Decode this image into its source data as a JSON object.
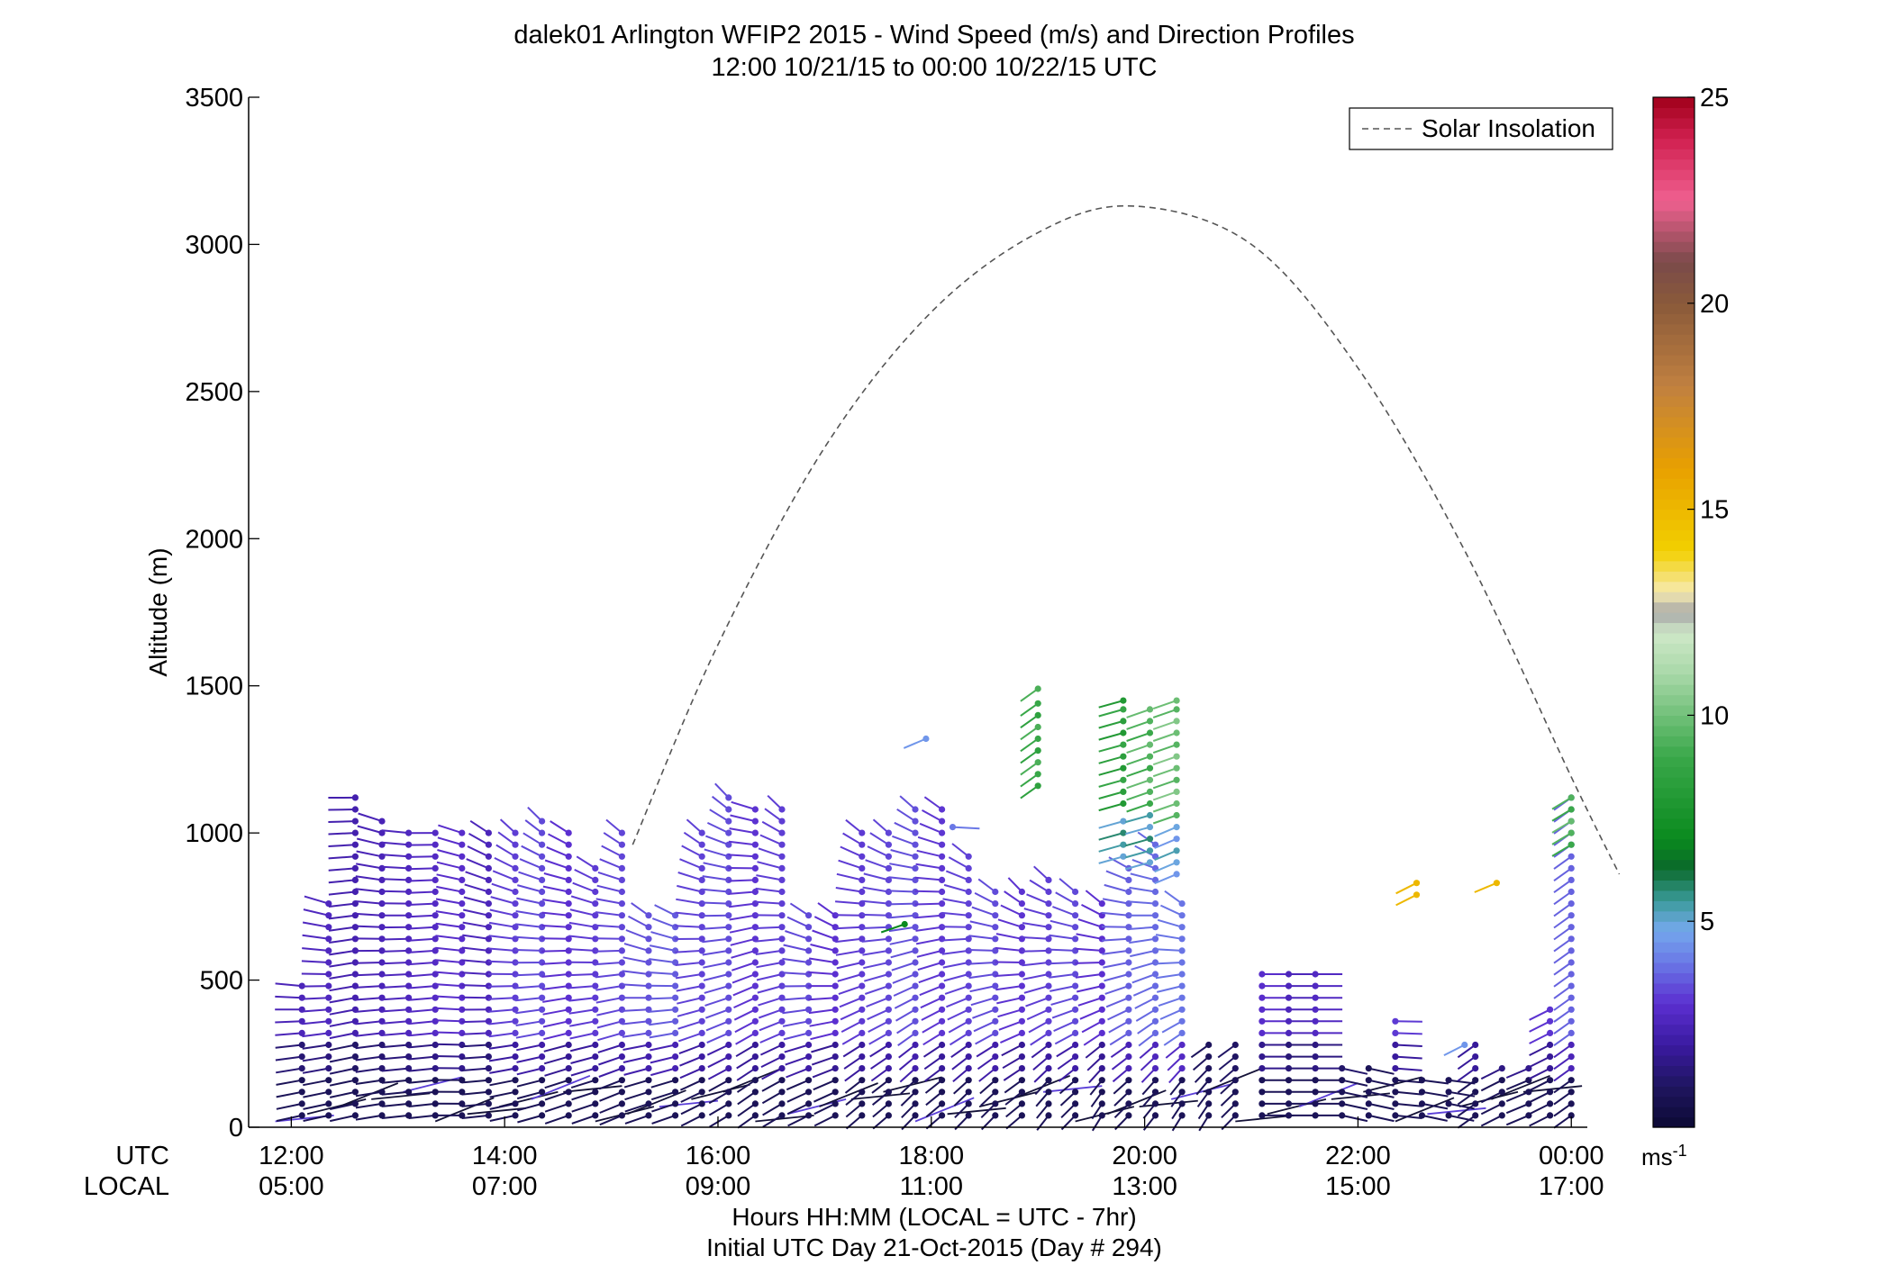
{
  "chart_data": {
    "type": "wind-barb-profile",
    "title": "dalek01 Arlington WFIP2 2015 - Wind Speed (m/s) and Direction Profiles",
    "subtitle": "12:00 10/21/15 to 00:00 10/22/15  UTC",
    "ylabel": "Altitude (m)",
    "ylim": [
      0,
      3500
    ],
    "y_ticks": [
      0,
      500,
      1000,
      1500,
      2000,
      2500,
      3000,
      3500
    ],
    "x_range_hours": [
      11.6,
      24.15
    ],
    "x_ticks": [
      {
        "hour": 12,
        "utc": "12:00",
        "local": "05:00"
      },
      {
        "hour": 14,
        "utc": "14:00",
        "local": "07:00"
      },
      {
        "hour": 16,
        "utc": "16:00",
        "local": "09:00"
      },
      {
        "hour": 18,
        "utc": "18:00",
        "local": "11:00"
      },
      {
        "hour": 20,
        "utc": "20:00",
        "local": "13:00"
      },
      {
        "hour": 22,
        "utc": "22:00",
        "local": "15:00"
      },
      {
        "hour": 24,
        "utc": "00:00",
        "local": "17:00"
      }
    ],
    "row_labels": {
      "utc": "UTC",
      "local": "LOCAL"
    },
    "xlabel": "Hours HH:MM  (LOCAL = UTC - 7hr)",
    "xlabel2": "Initial UTC Day 21-Oct-2015 (Day # 294)",
    "legend": {
      "label": "Solar Insolation",
      "position": "top-right"
    },
    "colorbar": {
      "range": [
        0,
        25
      ],
      "ticks": [
        5,
        10,
        15,
        20,
        25
      ],
      "unit_label": "ms",
      "unit_exp": "-1"
    },
    "solar_insolation_curve": [
      {
        "hour": 15.2,
        "alt": 960
      },
      {
        "hour": 16.0,
        "alt": 1640
      },
      {
        "hour": 17.0,
        "alt": 2310
      },
      {
        "hour": 18.0,
        "alt": 2770
      },
      {
        "hour": 19.0,
        "alt": 3040
      },
      {
        "hour": 19.9,
        "alt": 3130
      },
      {
        "hour": 21.0,
        "alt": 3000
      },
      {
        "hour": 22.0,
        "alt": 2580
      },
      {
        "hour": 23.0,
        "alt": 1960
      },
      {
        "hour": 24.0,
        "alt": 1190
      },
      {
        "hour": 24.45,
        "alt": 860
      }
    ],
    "profiles": [
      {
        "hour": 12.1,
        "top": 490,
        "dir": 250,
        "spd": 2.5,
        "dir_top": 280
      },
      {
        "hour": 12.35,
        "top": 790,
        "dir": 250,
        "spd": 2.5,
        "dir_top": 300
      },
      {
        "hour": 12.6,
        "top": 1130,
        "dir": 250,
        "spd": 2.0,
        "dir_top": 270
      },
      {
        "hour": 12.85,
        "top": 1060,
        "dir": 255,
        "spd": 2.0,
        "dir_top": 300
      },
      {
        "hour": 13.1,
        "top": 1020,
        "dir": 260,
        "spd": 2.5,
        "dir_top": 280
      },
      {
        "hour": 13.35,
        "top": 1020,
        "dir": 260,
        "spd": 2.5,
        "dir_top": 270
      },
      {
        "hour": 13.6,
        "top": 1030,
        "dir": 270,
        "spd": 2.5,
        "dir_top": 300
      },
      {
        "hour": 13.85,
        "top": 1020,
        "dir": 260,
        "spd": 2.5,
        "dir_top": 320
      },
      {
        "hour": 14.1,
        "top": 1020,
        "dir": 250,
        "spd": 3.0,
        "dir_top": 330
      },
      {
        "hour": 14.35,
        "top": 1050,
        "dir": 245,
        "spd": 3.0,
        "dir_top": 330
      },
      {
        "hour": 14.6,
        "top": 1020,
        "dir": 240,
        "spd": 3.0,
        "dir_top": 320
      },
      {
        "hour": 14.85,
        "top": 900,
        "dir": 240,
        "spd": 3.0,
        "dir_top": 320
      },
      {
        "hour": 15.1,
        "top": 1030,
        "dir": 235,
        "spd": 3.0,
        "dir_top": 330
      },
      {
        "hour": 15.35,
        "top": 720,
        "dir": 240,
        "spd": 3.0,
        "dir_top": 320
      },
      {
        "hour": 15.6,
        "top": 720,
        "dir": 240,
        "spd": 3.5,
        "dir_top": 310
      },
      {
        "hour": 15.85,
        "top": 1020,
        "dir": 230,
        "spd": 3.0,
        "dir_top": 330
      },
      {
        "hour": 16.1,
        "top": 1120,
        "dir": 225,
        "spd": 3.0,
        "dir_top": 330
      },
      {
        "hour": 16.35,
        "top": 1100,
        "dir": 220,
        "spd": 3.0,
        "dir_top": 300
      },
      {
        "hour": 16.6,
        "top": 1090,
        "dir": 225,
        "spd": 3.0,
        "dir_top": 330
      },
      {
        "hour": 16.85,
        "top": 730,
        "dir": 230,
        "spd": 3.0,
        "dir_top": 320
      },
      {
        "hour": 17.1,
        "top": 720,
        "dir": 230,
        "spd": 3.0,
        "dir_top": 320
      },
      {
        "hour": 17.35,
        "top": 1030,
        "dir": 215,
        "spd": 3.0,
        "dir_top": 330
      },
      {
        "hour": 17.6,
        "top": 1020,
        "dir": 215,
        "spd": 3.0,
        "dir_top": 330
      },
      {
        "hour": 17.85,
        "top": 1100,
        "dir": 210,
        "spd": 3.0,
        "dir_top": 330
      },
      {
        "hour": 18.1,
        "top": 1080,
        "dir": 215,
        "spd": 3.0,
        "dir_top": 320
      },
      {
        "hour": 18.35,
        "top": 950,
        "dir": 210,
        "spd": 3.0,
        "dir_top": 330
      },
      {
        "hour": 18.6,
        "top": 830,
        "dir": 210,
        "spd": 3.0,
        "dir_top": 330
      },
      {
        "hour": 18.85,
        "top": 800,
        "dir": 215,
        "spd": 3.0,
        "dir_top": 330
      },
      {
        "hour": 19.1,
        "top": 850,
        "dir": 205,
        "spd": 3.0,
        "dir_top": 330
      },
      {
        "hour": 19.35,
        "top": 820,
        "dir": 210,
        "spd": 3.0,
        "dir_top": 330
      },
      {
        "hour": 19.6,
        "top": 780,
        "dir": 200,
        "spd": 3.0,
        "dir_top": 330
      },
      {
        "hour": 19.85,
        "top": 910,
        "dir": 210,
        "spd": 3.5,
        "dir_top": 320
      },
      {
        "hour": 20.1,
        "top": 960,
        "dir": 205,
        "spd": 3.5,
        "dir_top": 320
      },
      {
        "hour": 20.35,
        "top": 790,
        "dir": 200,
        "spd": 3.5,
        "dir_top": 330
      },
      {
        "hour": 20.6,
        "top": 280,
        "dir": 200,
        "spd": 2.0,
        "dir_top": 220
      },
      {
        "hour": 20.85,
        "top": 290,
        "dir": 210,
        "spd": 2.0,
        "dir_top": 220
      },
      {
        "hour": 21.1,
        "top": 520,
        "dir": 90,
        "spd": 2.5,
        "dir_top": 90
      },
      {
        "hour": 21.35,
        "top": 520,
        "dir": 90,
        "spd": 2.5,
        "dir_top": 90
      },
      {
        "hour": 21.6,
        "top": 520,
        "dir": 90,
        "spd": 2.5,
        "dir_top": 90
      },
      {
        "hour": 21.85,
        "top": 200,
        "dir": 110,
        "spd": 2.0,
        "dir_top": 110
      },
      {
        "hour": 22.1,
        "top": 200,
        "dir": 110,
        "spd": 2.0,
        "dir_top": 110
      },
      {
        "hour": 22.35,
        "top": 390,
        "dir": 100,
        "spd": 3.0,
        "dir_top": 90
      },
      {
        "hour": 22.6,
        "top": 180,
        "dir": 110,
        "spd": 2.5,
        "dir_top": 100
      },
      {
        "hour": 22.85,
        "top": 180,
        "dir": 110,
        "spd": 2.5,
        "dir_top": 100
      },
      {
        "hour": 23.1,
        "top": 280,
        "dir": 220,
        "spd": 3.0,
        "dir_top": 220
      },
      {
        "hour": 23.35,
        "top": 230,
        "dir": 230,
        "spd": 2.5,
        "dir_top": 230
      },
      {
        "hour": 23.6,
        "top": 230,
        "dir": 235,
        "spd": 2.5,
        "dir_top": 235
      },
      {
        "hour": 23.8,
        "top": 410,
        "dir": 230,
        "spd": 3.0,
        "dir_top": 230
      },
      {
        "hour": 24.0,
        "top": 1120,
        "dir": 220,
        "spd": 3.5,
        "dir_top": 220
      }
    ],
    "upper_barbs": [
      {
        "hour": 19.0,
        "alts": [
          1160,
          1200,
          1240,
          1280,
          1320,
          1360,
          1400,
          1440,
          1490
        ],
        "dir": 220,
        "spd": 8.5
      },
      {
        "hour": 19.8,
        "alts": [
          1100,
          1140,
          1180,
          1220,
          1260,
          1300,
          1340,
          1380,
          1420,
          1450
        ],
        "dir": 245,
        "spd": 8.0
      },
      {
        "hour": 20.05,
        "alts": [
          1100,
          1140,
          1180,
          1220,
          1260,
          1300,
          1340,
          1380,
          1420
        ],
        "dir": 240,
        "spd": 9.0
      },
      {
        "hour": 20.3,
        "alts": [
          1060,
          1100,
          1140,
          1180,
          1220,
          1260,
          1300,
          1340,
          1380,
          1420,
          1450
        ],
        "dir": 240,
        "spd": 9.5
      },
      {
        "hour": 19.8,
        "alts": [
          920,
          960,
          1000,
          1040
        ],
        "dir": 245,
        "spd": 5.0
      },
      {
        "hour": 20.05,
        "alts": [
          900,
          940,
          980,
          1020,
          1060
        ],
        "dir": 245,
        "spd": 5.0
      },
      {
        "hour": 20.3,
        "alts": [
          860,
          900,
          940,
          980,
          1020
        ],
        "dir": 235,
        "spd": 4.5
      },
      {
        "hour": 24.0,
        "alts": [
          960,
          1000,
          1040,
          1080,
          1120
        ],
        "dir": 225,
        "spd": 9.0
      }
    ],
    "isolated_barbs": [
      {
        "hour": 17.95,
        "alt": 1320,
        "dir": 235,
        "spd": 4.5
      },
      {
        "hour": 18.2,
        "alt": 1020,
        "dir": 95,
        "spd": 4.0
      },
      {
        "hour": 17.75,
        "alt": 690,
        "dir": 240,
        "spd": 7.0
      },
      {
        "hour": 22.55,
        "alt": 830,
        "dir": 230,
        "spd": 15.0
      },
      {
        "hour": 22.55,
        "alt": 790,
        "dir": 230,
        "spd": 15.0
      },
      {
        "hour": 23.3,
        "alt": 830,
        "dir": 235,
        "spd": 15.0
      },
      {
        "hour": 23.0,
        "alt": 280,
        "dir": 230,
        "spd": 4.5
      }
    ]
  }
}
